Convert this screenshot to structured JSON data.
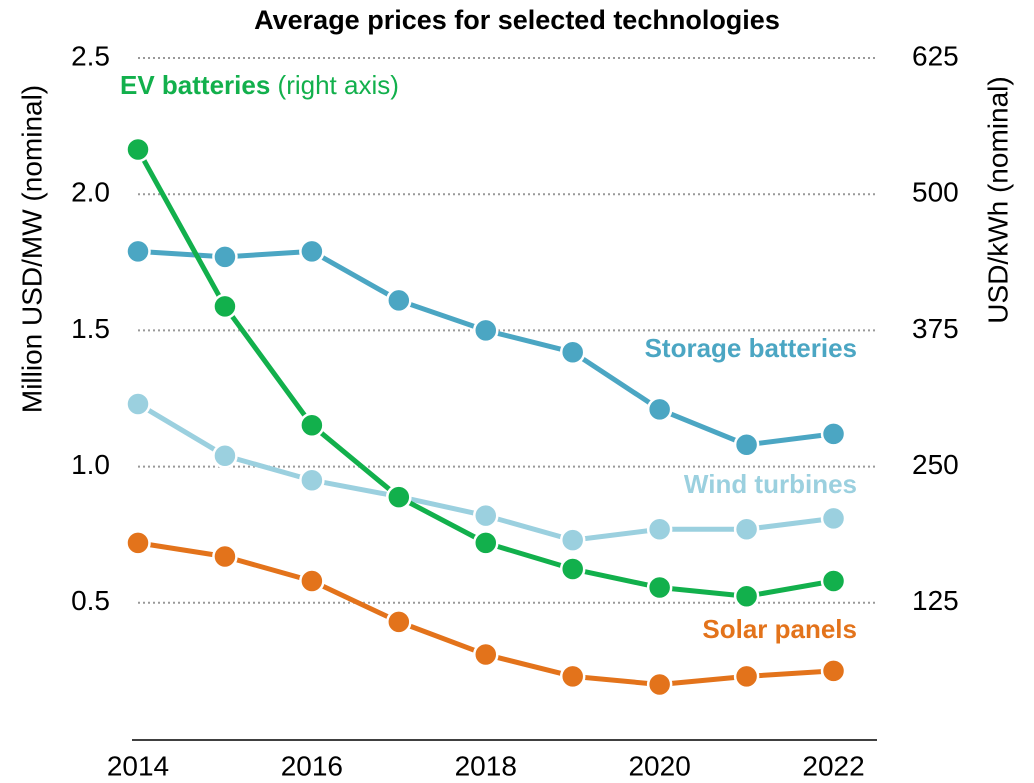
{
  "chart_data": {
    "type": "line",
    "title": "Average prices for selected technologies",
    "ylabel": "Million USD/MW (nominal)",
    "y2label": "USD/kWh (nominal)",
    "x": [
      2014,
      2015,
      2016,
      2017,
      2018,
      2019,
      2020,
      2021,
      2022
    ],
    "xlim": [
      2014,
      2022.5
    ],
    "xticks": [
      2014,
      2016,
      2018,
      2020,
      2022
    ],
    "ylim": [
      0,
      2.5
    ],
    "yticks": [
      0.5,
      {
        "value": 1,
        "label": "1.0"
      },
      1.5,
      {
        "value": 2,
        "label": "2.0"
      },
      2.5
    ],
    "y2lim": [
      0,
      625
    ],
    "y2ticks": [
      125,
      250,
      375,
      500,
      625
    ],
    "grid": true,
    "annotations": [
      "(right axis)"
    ],
    "series": [
      {
        "name": "Storage batteries",
        "color": "#4ba6c3",
        "values": [
          1.79,
          1.77,
          1.79,
          1.61,
          1.5,
          1.42,
          1.21,
          1.08,
          1.12
        ]
      },
      {
        "name": "Wind turbines",
        "color": "#9bd0df",
        "values": [
          1.23,
          1.04,
          0.95,
          0.89,
          0.82,
          0.73,
          0.77,
          0.77,
          0.81
        ]
      },
      {
        "name": "Solar panels",
        "color": "#e3731b",
        "values": [
          0.72,
          0.67,
          0.58,
          0.43,
          0.31,
          0.23,
          0.2,
          0.23,
          0.25
        ]
      },
      {
        "name": "EV batteries",
        "color": "#12b04c",
        "axis": "y2",
        "values": [
          541,
          397,
          288,
          222,
          180,
          156,
          139,
          131,
          145
        ]
      }
    ]
  }
}
